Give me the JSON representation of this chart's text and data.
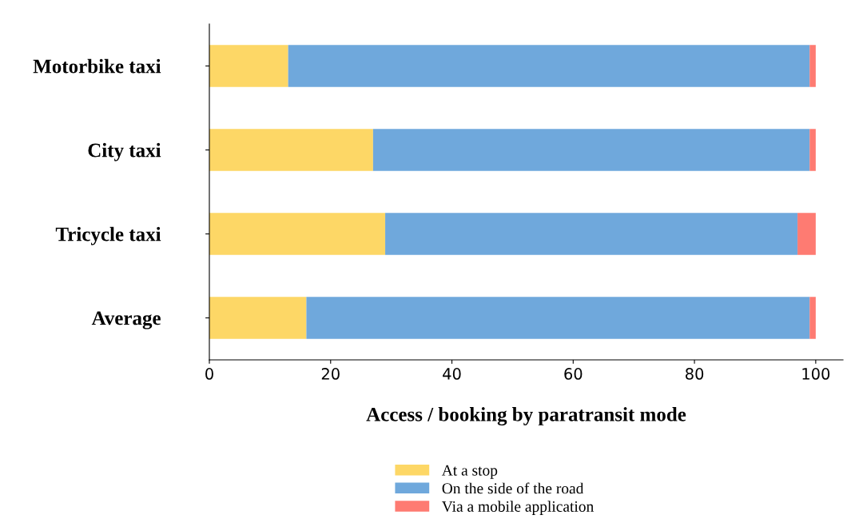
{
  "chart_data": {
    "type": "bar",
    "orientation": "horizontal",
    "stacked": true,
    "xlabel": "Access / booking by paratransit mode",
    "categories": [
      "Motorbike taxi",
      "City taxi",
      "Tricycle taxi",
      "Average"
    ],
    "series": [
      {
        "name": "At a stop",
        "color": "#fdd766",
        "values": [
          13,
          27,
          29,
          16
        ]
      },
      {
        "name": "On the side of the road",
        "color": "#6fa8dc",
        "values": [
          86,
          72,
          68,
          83
        ]
      },
      {
        "name": "Via a mobile application",
        "color": "#fe7b72",
        "values": [
          1,
          1,
          3,
          1
        ]
      }
    ],
    "xlim": [
      0,
      104.5
    ],
    "xticks": [
      0,
      20,
      40,
      60,
      80,
      100
    ],
    "legend": "bottom",
    "grid": false
  }
}
